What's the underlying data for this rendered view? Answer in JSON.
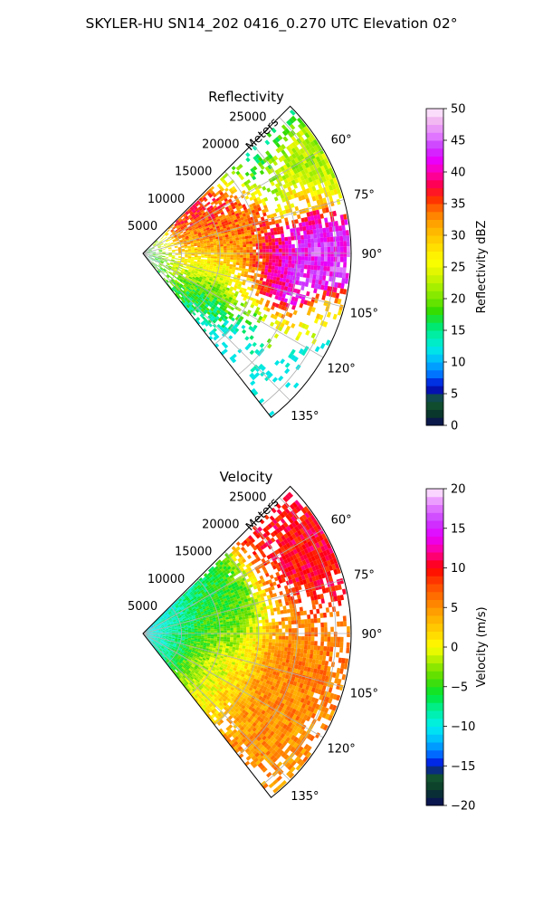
{
  "figure": {
    "title": "SKYLER-HU  SN14_202  0416_0.270 UTC Elevation 02°"
  },
  "chart_data": [
    {
      "type": "heatmap",
      "subtype": "polar-sector (radar PPI)",
      "title": "Reflectivity",
      "radial_label": "Meters",
      "radial_ticks": [
        5000,
        10000,
        15000,
        20000,
        25000
      ],
      "radial_tick_labels": [
        "5000",
        "10000",
        "15000",
        "20000",
        "25000"
      ],
      "radial_max": 27000,
      "azimuth_ticks": [
        60,
        75,
        90,
        105,
        120,
        135
      ],
      "azimuth_tick_labels": [
        "60°",
        "75°",
        "90°",
        "105°",
        "120°",
        "135°"
      ],
      "azimuth_range_deg": [
        45,
        142
      ],
      "grid": true,
      "colorbar": {
        "label": "Reflectivity dBZ",
        "vmin": 0,
        "vmax": 50,
        "ticks": [
          0,
          5,
          10,
          15,
          20,
          25,
          30,
          35,
          40,
          45,
          50
        ],
        "tick_labels": [
          "0",
          "5",
          "10",
          "15",
          "20",
          "25",
          "30",
          "35",
          "40",
          "45",
          "50"
        ],
        "stops": [
          [
            0,
            "#0a0a5a"
          ],
          [
            2,
            "#0a3a28"
          ],
          [
            4,
            "#145a32"
          ],
          [
            6,
            "#0000cc"
          ],
          [
            8,
            "#0070ff"
          ],
          [
            10,
            "#00b4ff"
          ],
          [
            12,
            "#00e6e6"
          ],
          [
            14,
            "#00f0b0"
          ],
          [
            16,
            "#00e664"
          ],
          [
            18,
            "#32dc00"
          ],
          [
            20,
            "#78e600"
          ],
          [
            22,
            "#aaf000"
          ],
          [
            24,
            "#dcf500"
          ],
          [
            26,
            "#ffff00"
          ],
          [
            28,
            "#ffe100"
          ],
          [
            30,
            "#ffc300"
          ],
          [
            32,
            "#ffa000"
          ],
          [
            34,
            "#ff6e00"
          ],
          [
            36,
            "#ff2800"
          ],
          [
            38,
            "#ff0050"
          ],
          [
            40,
            "#ff00b4"
          ],
          [
            42,
            "#e600ff"
          ],
          [
            44,
            "#c83cff"
          ],
          [
            46,
            "#e682ff"
          ],
          [
            48,
            "#f0b4f0"
          ],
          [
            50,
            "#fff0ff"
          ]
        ]
      },
      "echo_features": [
        {
          "az_deg": 73,
          "range_m": 9000,
          "value_dbz": 40,
          "description": "magenta core, upper-left"
        },
        {
          "az_deg": 80,
          "range_m": 12000,
          "value_dbz": 30,
          "description": "orange cell"
        },
        {
          "az_deg": 94,
          "range_m": 18000,
          "value_dbz": 42,
          "description": "magenta core, center"
        },
        {
          "az_deg": 88,
          "range_m": 23000,
          "value_dbz": 44,
          "description": "magenta core, outer edge"
        },
        {
          "az_deg": 62,
          "range_m": 25000,
          "value_dbz": 22,
          "description": "light green, far edge"
        },
        {
          "az_deg": 115,
          "range_m": 9000,
          "value_dbz": 14,
          "description": "cyan/green band"
        }
      ]
    },
    {
      "type": "heatmap",
      "subtype": "polar-sector (radar PPI)",
      "title": "Velocity",
      "radial_label": "Meters",
      "radial_ticks": [
        5000,
        10000,
        15000,
        20000,
        25000
      ],
      "radial_tick_labels": [
        "5000",
        "10000",
        "15000",
        "20000",
        "25000"
      ],
      "radial_max": 27000,
      "azimuth_ticks": [
        60,
        75,
        90,
        105,
        120,
        135
      ],
      "azimuth_tick_labels": [
        "60°",
        "75°",
        "90°",
        "105°",
        "120°",
        "135°"
      ],
      "azimuth_range_deg": [
        45,
        142
      ],
      "grid": true,
      "colorbar": {
        "label": "Velocity (m/s)",
        "vmin": -20,
        "vmax": 20,
        "ticks": [
          -20,
          -15,
          -10,
          -5,
          0,
          5,
          10,
          15,
          20
        ],
        "tick_labels": [
          "−20",
          "−15",
          "−10",
          "−5",
          "0",
          "5",
          "10",
          "15",
          "20"
        ],
        "stops": [
          [
            -20,
            "#0a0a5a"
          ],
          [
            -18,
            "#0a3a28"
          ],
          [
            -16,
            "#145a32"
          ],
          [
            -15,
            "#0000cc"
          ],
          [
            -14,
            "#0050ff"
          ],
          [
            -12,
            "#00b4ff"
          ],
          [
            -10,
            "#00f0f0"
          ],
          [
            -8,
            "#00f0a0"
          ],
          [
            -6,
            "#00e632"
          ],
          [
            -4,
            "#50dc00"
          ],
          [
            -2,
            "#a0eb00"
          ],
          [
            0,
            "#ffff00"
          ],
          [
            2,
            "#ffd200"
          ],
          [
            4,
            "#ffaa00"
          ],
          [
            6,
            "#ff7800"
          ],
          [
            8,
            "#ff4600"
          ],
          [
            10,
            "#ff0000"
          ],
          [
            12,
            "#ff0096"
          ],
          [
            14,
            "#e600ff"
          ],
          [
            16,
            "#c83cff"
          ],
          [
            18,
            "#e682ff"
          ],
          [
            20,
            "#fff0ff"
          ]
        ]
      },
      "echo_features": [
        {
          "az_deg": 70,
          "range_m": 3000,
          "value_ms": -11,
          "description": "cyan near radar"
        },
        {
          "az_deg": 80,
          "range_m": 9000,
          "value_ms": -5,
          "description": "green band, upper-left"
        },
        {
          "az_deg": 62,
          "range_m": 24000,
          "value_ms": 10,
          "description": "red, far edge"
        },
        {
          "az_deg": 100,
          "range_m": 20000,
          "value_ms": 6,
          "description": "orange-red, right"
        },
        {
          "az_deg": 112,
          "range_m": 10000,
          "value_ms": 1,
          "description": "yellow, lower"
        },
        {
          "az_deg": 120,
          "range_m": 20000,
          "value_ms": 5,
          "description": "orange, lower-right"
        }
      ]
    }
  ]
}
